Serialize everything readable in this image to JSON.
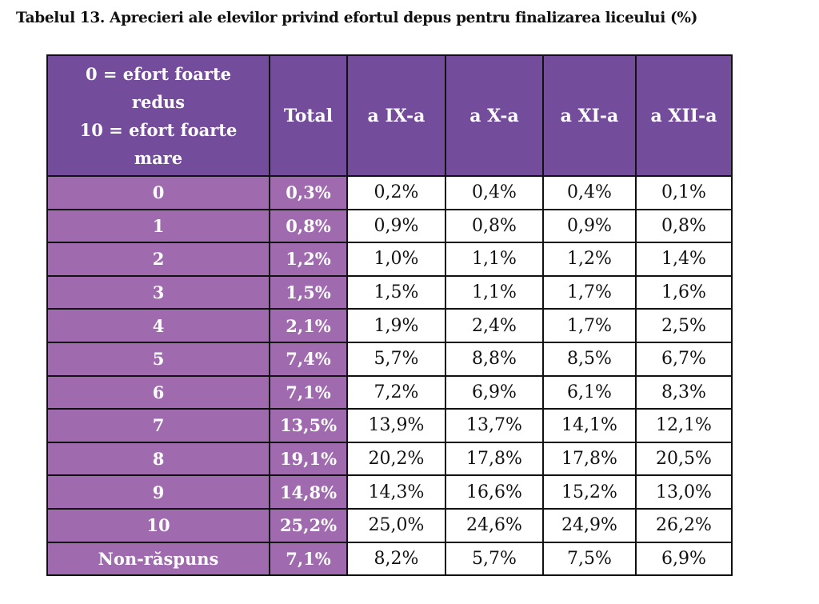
{
  "title": "Tabelul 13. Aprecieri ale elevilor privind efortul depus pentru finalizarea liceului (%)",
  "table": {
    "header": {
      "legend_line1": "0 = efort foarte",
      "legend_line2": "redus",
      "legend_line3": "10 = efort foarte",
      "legend_line4": "mare",
      "columns": [
        "Total",
        "a IX-a",
        "a X-a",
        "a XI-a",
        "a XII-a"
      ]
    },
    "rows": [
      {
        "label": "0",
        "values": [
          "0,3%",
          "0,2%",
          "0,4%",
          "0,4%",
          "0,1%"
        ]
      },
      {
        "label": "1",
        "values": [
          "0,8%",
          "0,9%",
          "0,8%",
          "0,9%",
          "0,8%"
        ]
      },
      {
        "label": "2",
        "values": [
          "1,2%",
          "1,0%",
          "1,1%",
          "1,2%",
          "1,4%"
        ]
      },
      {
        "label": "3",
        "values": [
          "1,5%",
          "1,5%",
          "1,1%",
          "1,7%",
          "1,6%"
        ]
      },
      {
        "label": "4",
        "values": [
          "2,1%",
          "1,9%",
          "2,4%",
          "1,7%",
          "2,5%"
        ]
      },
      {
        "label": "5",
        "values": [
          "7,4%",
          "5,7%",
          "8,8%",
          "8,5%",
          "6,7%"
        ]
      },
      {
        "label": "6",
        "values": [
          "7,1%",
          "7,2%",
          "6,9%",
          "6,1%",
          "8,3%"
        ]
      },
      {
        "label": "7",
        "values": [
          "13,5%",
          "13,9%",
          "13,7%",
          "14,1%",
          "12,1%"
        ]
      },
      {
        "label": "8",
        "values": [
          "19,1%",
          "20,2%",
          "17,8%",
          "17,8%",
          "20,5%"
        ]
      },
      {
        "label": "9",
        "values": [
          "14,8%",
          "14,3%",
          "16,6%",
          "15,2%",
          "13,0%"
        ]
      },
      {
        "label": "10",
        "values": [
          "25,2%",
          "25,0%",
          "24,6%",
          "24,9%",
          "26,2%"
        ]
      },
      {
        "label": "Non-răspuns",
        "values": [
          "7,1%",
          "8,2%",
          "5,7%",
          "7,5%",
          "6,9%"
        ]
      }
    ]
  },
  "colors": {
    "header_bg": "#744c9c",
    "row_label_bg": "#9f6bae",
    "border": "#111111"
  }
}
